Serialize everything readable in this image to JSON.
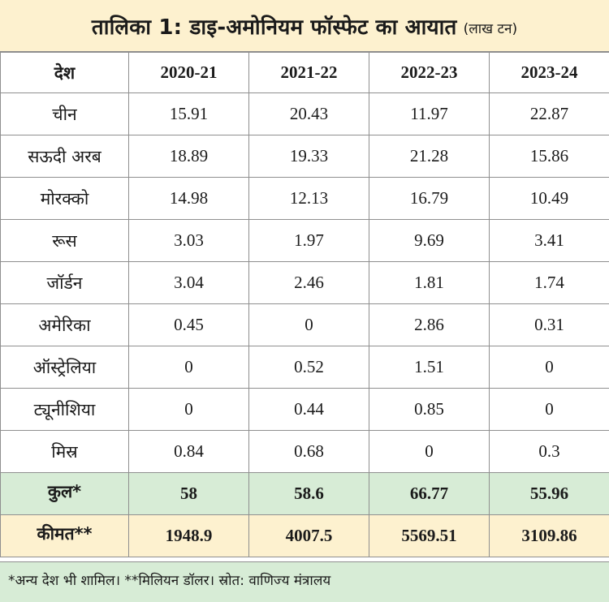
{
  "title": {
    "main": "तालिका 1: डाइ-अमोनियम फॉस्फेट का आयात",
    "unit": "(लाख टन)"
  },
  "table": {
    "header": {
      "country": "देश",
      "years": [
        "2020-21",
        "2021-22",
        "2022-23",
        "2023-24"
      ]
    },
    "rows": [
      {
        "country": "चीन",
        "values": [
          "15.91",
          "20.43",
          "11.97",
          "22.87"
        ]
      },
      {
        "country": "सऊदी अरब",
        "values": [
          "18.89",
          "19.33",
          "21.28",
          "15.86"
        ]
      },
      {
        "country": "मोरक्को",
        "values": [
          "14.98",
          "12.13",
          "16.79",
          "10.49"
        ]
      },
      {
        "country": "रूस",
        "values": [
          "3.03",
          "1.97",
          "9.69",
          "3.41"
        ]
      },
      {
        "country": "जॉर्डन",
        "values": [
          "3.04",
          "2.46",
          "1.81",
          "1.74"
        ]
      },
      {
        "country": "अमेरिका",
        "values": [
          "0.45",
          "0",
          "2.86",
          "0.31"
        ]
      },
      {
        "country": "ऑस्ट्रेलिया",
        "values": [
          "0",
          "0.52",
          "1.51",
          "0"
        ]
      },
      {
        "country": "ट्यूनीशिया",
        "values": [
          "0",
          "0.44",
          "0.85",
          "0"
        ]
      },
      {
        "country": "मिस्र",
        "values": [
          "0.84",
          "0.68",
          "0",
          "0.3"
        ]
      }
    ],
    "total": {
      "label": "कुल*",
      "values": [
        "58",
        "58.6",
        "66.77",
        "55.96"
      ]
    },
    "price": {
      "label": "कीमत**",
      "values": [
        "1948.9",
        "4007.5",
        "5569.51",
        "3109.86"
      ]
    }
  },
  "footer": {
    "note": "*अन्य देश भी शामिल। **मिलियन डॉलर। स्रोत: वाणिज्य मंत्रालय"
  },
  "colors": {
    "title_bg": "#fdf1cf",
    "total_bg": "#d7ecd6",
    "price_bg": "#fdf1cf",
    "footer_bg": "#d7ecd6",
    "grid": "#8f8f8f"
  }
}
